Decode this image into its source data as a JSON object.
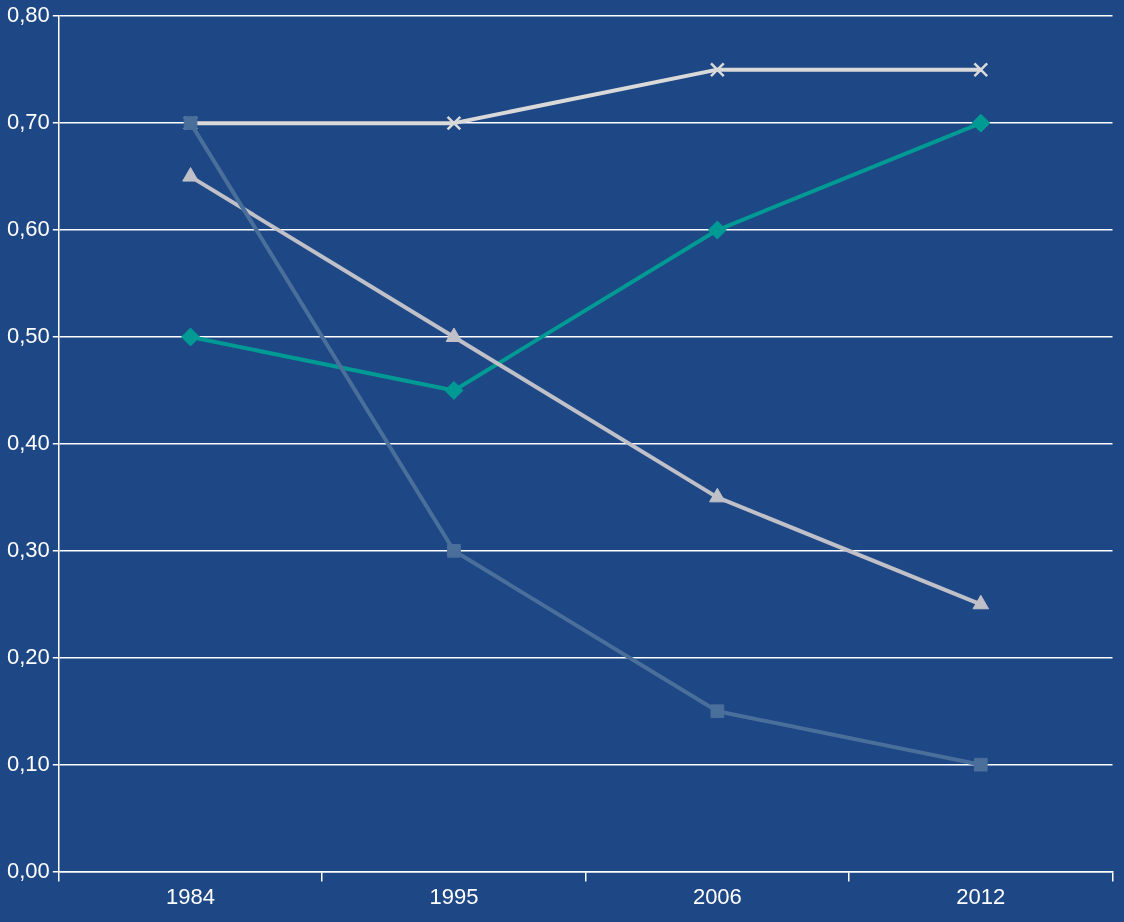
{
  "chart_data": {
    "type": "line",
    "categories": [
      "1984",
      "1995",
      "2006",
      "2012"
    ],
    "series": [
      {
        "color": "#d9d9d9",
        "marker": "cross",
        "values": [
          0.7,
          0.7,
          0.75,
          0.75
        ]
      },
      {
        "color": "#009a94",
        "marker": "diamond",
        "values": [
          0.5,
          0.45,
          0.6,
          0.7
        ]
      },
      {
        "color": "#c0c0c8",
        "marker": "triangle",
        "values": [
          0.65,
          0.5,
          0.35,
          0.25
        ]
      },
      {
        "color": "#4a6f9a",
        "marker": "square",
        "values": [
          0.7,
          0.3,
          0.15,
          0.1
        ]
      }
    ],
    "ylim": [
      0,
      0.8
    ],
    "yticks": [
      {
        "value": 0,
        "label": "0,00"
      },
      {
        "value": 0.1,
        "label": "0,10"
      },
      {
        "value": 0.2,
        "label": "0,20"
      },
      {
        "value": 0.3,
        "label": "0,30"
      },
      {
        "value": 0.4,
        "label": "0,40"
      },
      {
        "value": 0.5,
        "label": "0,50"
      },
      {
        "value": 0.6,
        "label": "0,60"
      },
      {
        "value": 0.7,
        "label": "0,70"
      },
      {
        "value": 0.8,
        "label": "0,80"
      }
    ],
    "grid": "y",
    "legend": false,
    "line_style": "solid"
  }
}
